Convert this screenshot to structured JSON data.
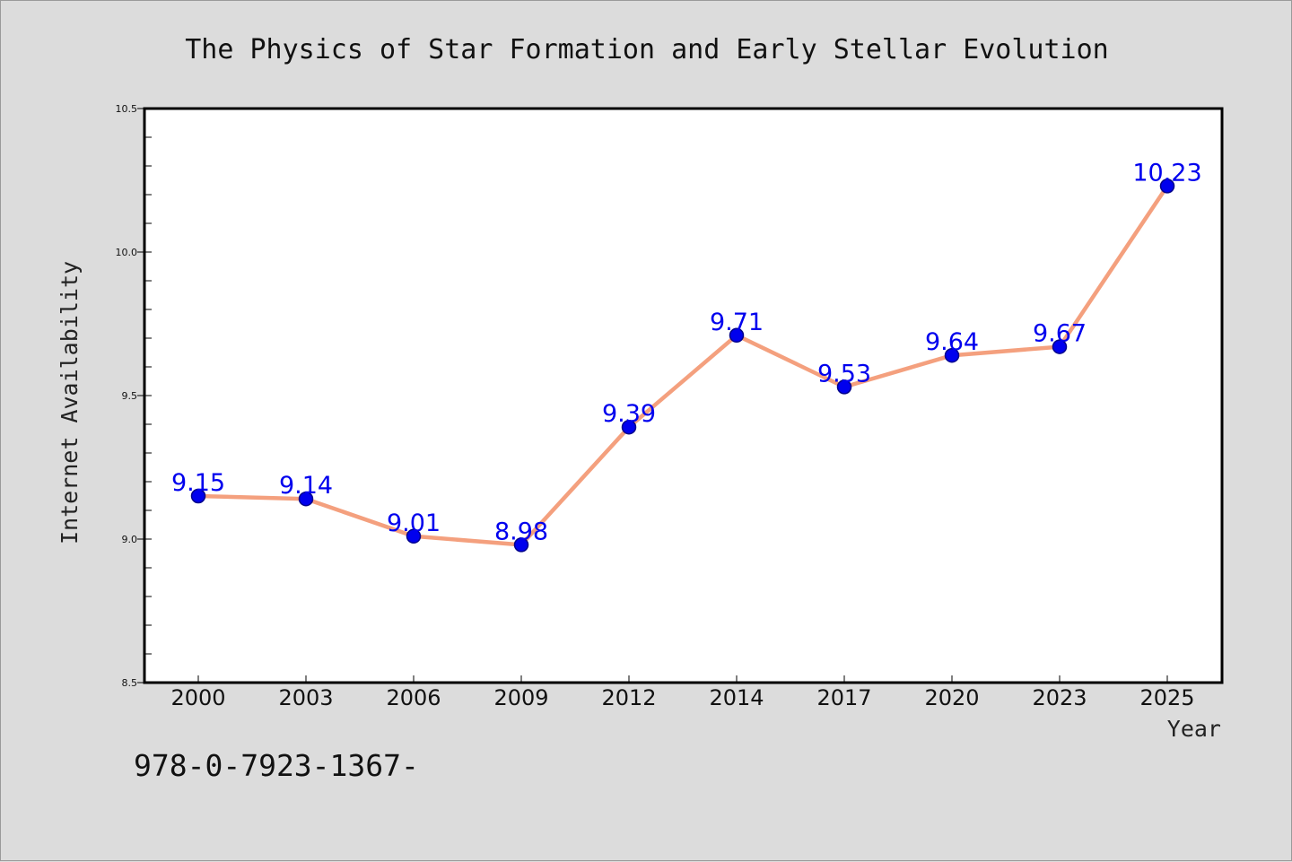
{
  "colors": {
    "background": "#dcdcdc",
    "plot_background": "#ffffff",
    "line": "#f4a07e",
    "marker_fill": "#0000ee",
    "marker_edge": "#00008b",
    "data_label": "#0000ee"
  },
  "footer": {
    "isbn_text": "978-0-7923-1367-"
  },
  "chart_data": {
    "type": "line",
    "title": "The Physics of Star Formation and Early Stellar Evolution",
    "xlabel": "Year",
    "ylabel": "Internet Availability",
    "categories": [
      "2000",
      "2003",
      "2006",
      "2009",
      "2012",
      "2014",
      "2017",
      "2020",
      "2023",
      "2025"
    ],
    "series": [
      {
        "values": [
          9.15,
          9.14,
          9.01,
          8.98,
          9.39,
          9.71,
          9.53,
          9.64,
          9.67,
          10.23
        ],
        "data_labels": [
          "9.15",
          "9.14",
          "9.01",
          "8.98",
          "9.39",
          "9.71",
          "9.53",
          "9.64",
          "9.67",
          "10.23"
        ]
      }
    ],
    "ylim": [
      8.5,
      10.5
    ],
    "yticks": [
      "8.5",
      "9.0",
      "9.5",
      "10.0",
      "10.5"
    ],
    "minor_ytick_step": 0.1,
    "grid": false,
    "legend": "none"
  }
}
